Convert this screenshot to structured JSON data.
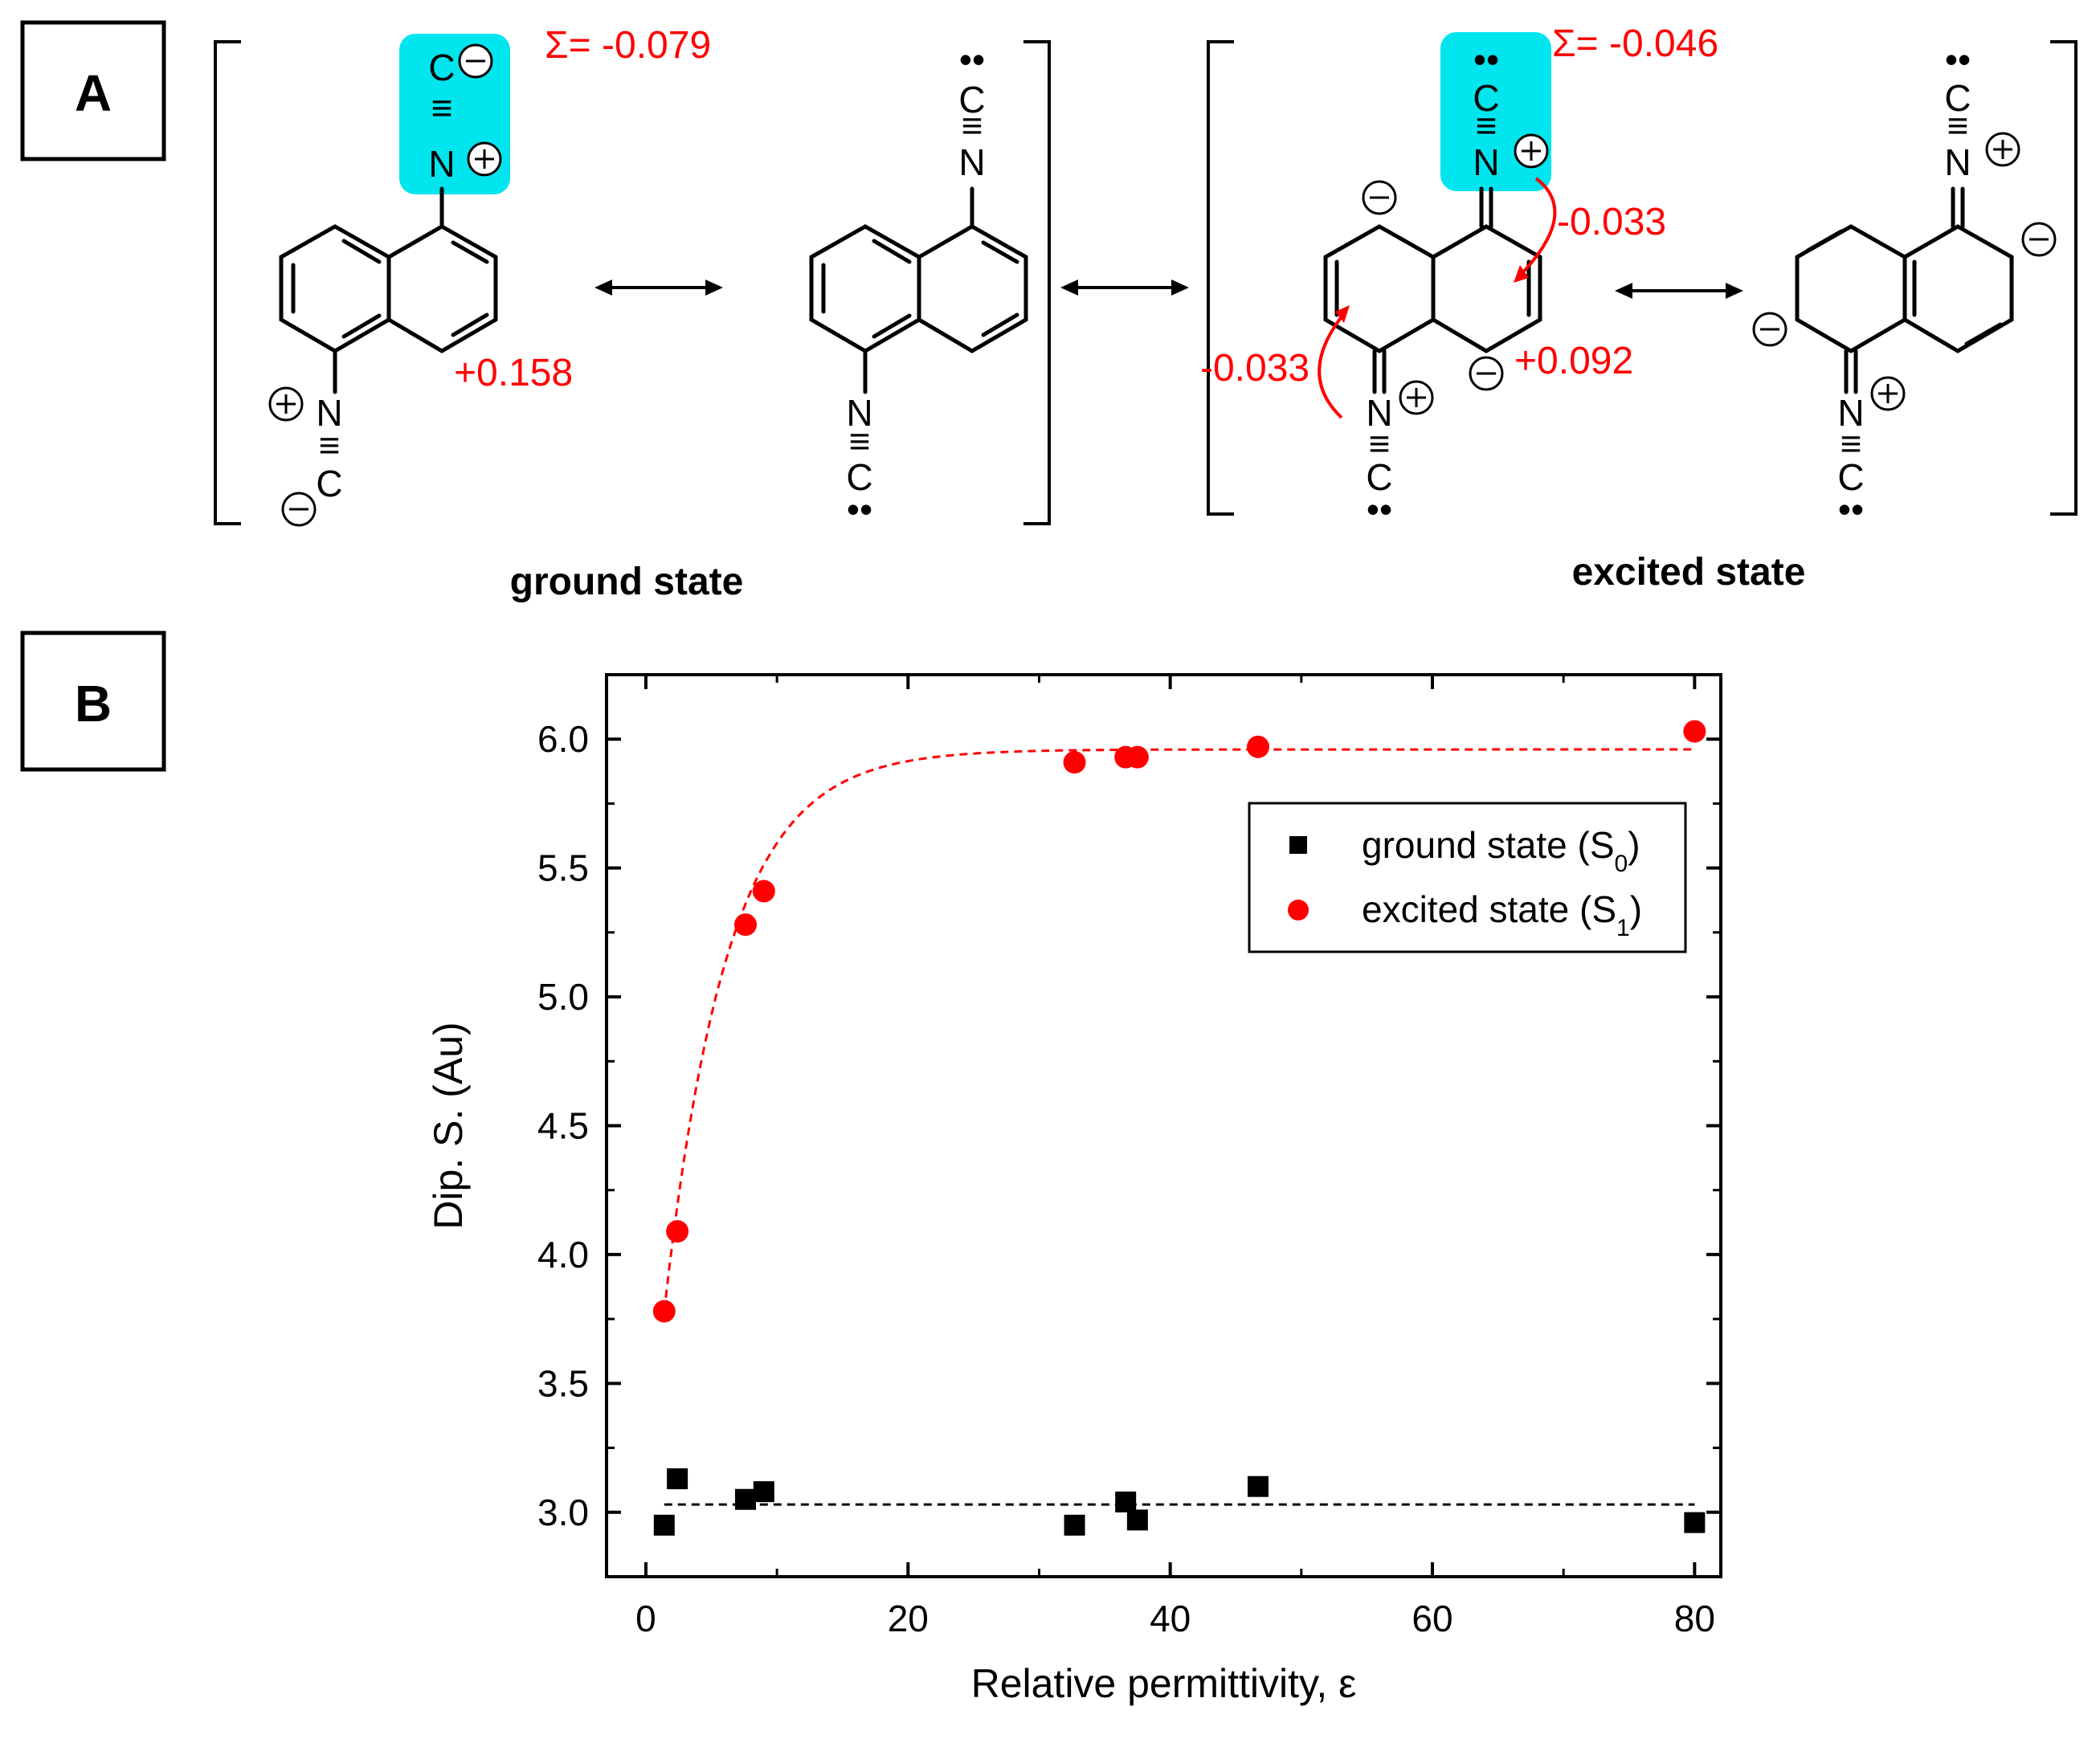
{
  "panel_a": {
    "label": "A",
    "sigma_ground": "Σ= -0.079",
    "sigma_excited": "Σ= -0.046",
    "charge_ground": "+0.158",
    "arrow_top": "-0.033",
    "arrow_left": "-0.033",
    "charge_excited": "+0.092",
    "ground_label": "ground state",
    "excited_label": "excited state",
    "atom_c": "C",
    "atom_n": "N",
    "triple_bond": "≡",
    "double_bond": "=",
    "lone_pair": "••",
    "highlight_color": "#00e5ee"
  },
  "panel_b": {
    "label": "B",
    "legend": {
      "ground_prefix": "ground state (S",
      "ground_sub": "0",
      "excited_prefix": "excited state (S",
      "excited_sub": "1",
      "suffix": ")"
    }
  },
  "chart_data": {
    "type": "scatter",
    "xlabel": "Relative permittivity, ε",
    "ylabel": "Dip. S. (Au)",
    "xlim": [
      -3,
      82
    ],
    "ylim": [
      2.75,
      6.25
    ],
    "xticks": [
      0,
      20,
      40,
      60,
      80
    ],
    "xtick_labels": [
      "0",
      "20",
      "40",
      "60",
      "80"
    ],
    "yticks": [
      3.0,
      3.5,
      4.0,
      4.5,
      5.0,
      5.5,
      6.0
    ],
    "ytick_labels": [
      "3.0",
      "3.5",
      "4.0",
      "4.5",
      "5.0",
      "5.5",
      "6.0"
    ],
    "grid": false,
    "legend_position": "upper-right",
    "series": [
      {
        "name": "ground state (S0)",
        "marker": "square",
        "color": "#000000",
        "x": [
          1.4,
          2.4,
          7.6,
          9.0,
          32.7,
          36.6,
          37.5,
          46.7,
          80.0
        ],
        "y": [
          2.95,
          3.13,
          3.05,
          3.08,
          2.95,
          3.04,
          2.97,
          3.1,
          2.96
        ],
        "fit": {
          "kind": "constant",
          "value": 3.03,
          "x_range": [
            1.4,
            80.0
          ],
          "style": "dashed",
          "color": "#000000"
        }
      },
      {
        "name": "excited state (S1)",
        "marker": "circle",
        "color": "#ff0000",
        "x": [
          1.4,
          2.4,
          7.6,
          9.0,
          32.7,
          36.6,
          37.5,
          46.7,
          80.0
        ],
        "y": [
          3.78,
          4.09,
          5.28,
          5.41,
          5.91,
          5.93,
          5.93,
          5.97,
          6.03
        ],
        "fit": {
          "kind": "exponential_saturation",
          "asymptote": 5.96,
          "x0": 1.4,
          "y0": 3.78,
          "tau": 4.8,
          "x_range": [
            1.4,
            80.0
          ],
          "style": "dashed",
          "color": "#ff0000"
        }
      }
    ]
  }
}
